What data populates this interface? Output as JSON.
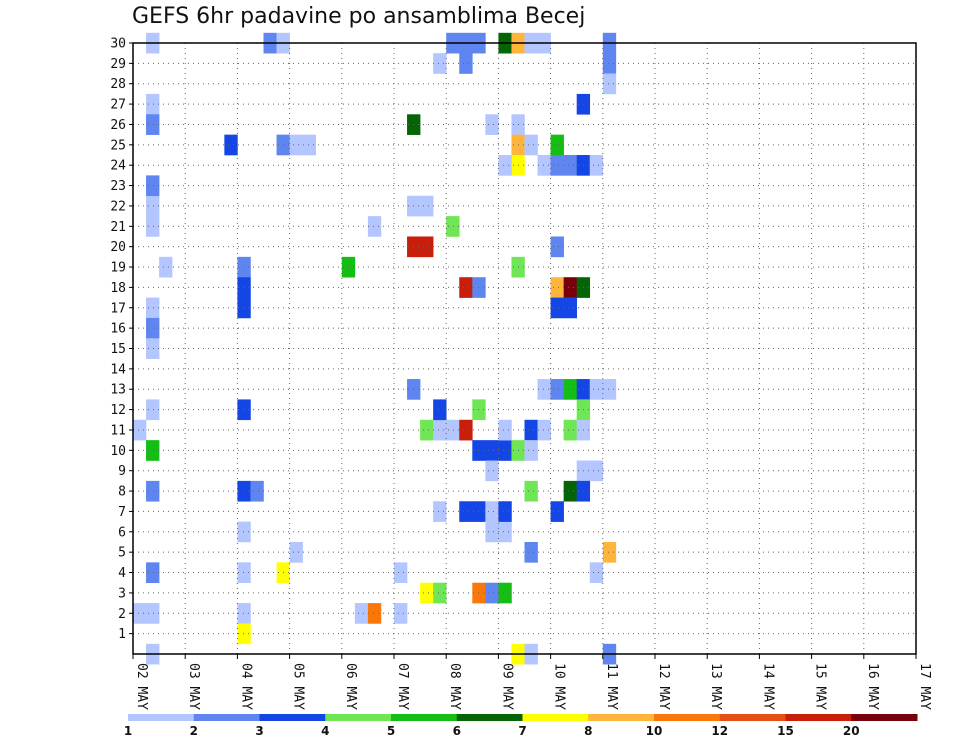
{
  "chart_data": {
    "type": "heatmap",
    "title": "GEFS 6hr padavine po ansamblima Becej",
    "xlabel": "",
    "ylabel": "",
    "x_tick_labels": [
      "02 MAY",
      "03 MAY",
      "04 MAY",
      "05 MAY",
      "06 MAY",
      "07 MAY",
      "08 MAY",
      "09 MAY",
      "10 MAY",
      "11 MAY",
      "12 MAY",
      "13 MAY",
      "14 MAY",
      "15 MAY",
      "16 MAY",
      "17 MAY"
    ],
    "xlim": [
      0,
      60
    ],
    "x_unit": "6-hour steps from 02 MAY 00Z",
    "ylim": [
      0,
      30
    ],
    "y_tick_labels": [
      "1",
      "2",
      "3",
      "4",
      "5",
      "6",
      "7",
      "8",
      "9",
      "10",
      "11",
      "12",
      "13",
      "14",
      "15",
      "16",
      "17",
      "18",
      "19",
      "20",
      "21",
      "22",
      "23",
      "24",
      "25",
      "26",
      "27",
      "28",
      "29",
      "30"
    ],
    "grid": true,
    "colorbar": {
      "labels": [
        "1",
        "2",
        "3",
        "4",
        "5",
        "6",
        "7",
        "8",
        "10",
        "12",
        "15",
        "20"
      ],
      "colors": [
        "#b4c6ff",
        "#5f86f0",
        "#1446e6",
        "#6ee655",
        "#14be14",
        "#056405",
        "#ffff00",
        "#ffb43c",
        "#fa780a",
        "#e65014",
        "#c81e0a",
        "#78000a"
      ]
    },
    "cells": [
      [
        1,
        0,
        1
      ],
      [
        1,
        30,
        1
      ],
      [
        2,
        19,
        1
      ],
      [
        1,
        22,
        1
      ],
      [
        1,
        21,
        1
      ],
      [
        1,
        27,
        1
      ],
      [
        1,
        26,
        2
      ],
      [
        1,
        23,
        2
      ],
      [
        1,
        17,
        1
      ],
      [
        1,
        16,
        2
      ],
      [
        1,
        15,
        1
      ],
      [
        1,
        12,
        1
      ],
      [
        0,
        11,
        1
      ],
      [
        1,
        10,
        5
      ],
      [
        1,
        8,
        2
      ],
      [
        1,
        4,
        2
      ],
      [
        0,
        2,
        1
      ],
      [
        1,
        2,
        1
      ],
      [
        8,
        19,
        2
      ],
      [
        8,
        18,
        3
      ],
      [
        8,
        17,
        3
      ],
      [
        7,
        25,
        3
      ],
      [
        8,
        12,
        3
      ],
      [
        8,
        8,
        3
      ],
      [
        9,
        8,
        2
      ],
      [
        8,
        6,
        1
      ],
      [
        8,
        4,
        1
      ],
      [
        8,
        2,
        1
      ],
      [
        8,
        1,
        7
      ],
      [
        10,
        30,
        2
      ],
      [
        11,
        30,
        1
      ],
      [
        11,
        4,
        7
      ],
      [
        11,
        25,
        2
      ],
      [
        12,
        25,
        1
      ],
      [
        13,
        25,
        1
      ],
      [
        12,
        5,
        1
      ],
      [
        16,
        19,
        5
      ],
      [
        17,
        2,
        1
      ],
      [
        18,
        2,
        9
      ],
      [
        18,
        21,
        1
      ],
      [
        20,
        4,
        1
      ],
      [
        20,
        2,
        1
      ],
      [
        21,
        26,
        6
      ],
      [
        21,
        22,
        1
      ],
      [
        22,
        22,
        1
      ],
      [
        21,
        20,
        11
      ],
      [
        22,
        20,
        11
      ],
      [
        21,
        13,
        2
      ],
      [
        22,
        3,
        7
      ],
      [
        23,
        3,
        4
      ],
      [
        22,
        11,
        4
      ],
      [
        23,
        11,
        1
      ],
      [
        24,
        11,
        1
      ],
      [
        25,
        11,
        11
      ],
      [
        23,
        12,
        3
      ],
      [
        23,
        29,
        1
      ],
      [
        23,
        7,
        1
      ],
      [
        24,
        21,
        4
      ],
      [
        24,
        30,
        2
      ],
      [
        25,
        30,
        2
      ],
      [
        26,
        30,
        2
      ],
      [
        25,
        29,
        2
      ],
      [
        25,
        18,
        11
      ],
      [
        26,
        18,
        2
      ],
      [
        26,
        12,
        4
      ],
      [
        26,
        3,
        9
      ],
      [
        27,
        3,
        2
      ],
      [
        28,
        3,
        5
      ],
      [
        25,
        7,
        3
      ],
      [
        26,
        7,
        3
      ],
      [
        27,
        7,
        1
      ],
      [
        26,
        10,
        3
      ],
      [
        27,
        10,
        3
      ],
      [
        28,
        10,
        3
      ],
      [
        27,
        9,
        1
      ],
      [
        27,
        6,
        1
      ],
      [
        28,
        6,
        1
      ],
      [
        27,
        26,
        1
      ],
      [
        28,
        30,
        6
      ],
      [
        29,
        30,
        8
      ],
      [
        30,
        30,
        1
      ],
      [
        31,
        30,
        1
      ],
      [
        29,
        26,
        1
      ],
      [
        29,
        25,
        8
      ],
      [
        30,
        25,
        1
      ],
      [
        29,
        24,
        7
      ],
      [
        28,
        24,
        1
      ],
      [
        29,
        19,
        4
      ],
      [
        28,
        11,
        1
      ],
      [
        30,
        11,
        3
      ],
      [
        31,
        11,
        1
      ],
      [
        29,
        10,
        4
      ],
      [
        30,
        10,
        1
      ],
      [
        28,
        7,
        3
      ],
      [
        30,
        8,
        4
      ],
      [
        30,
        5,
        2
      ],
      [
        29,
        0,
        7
      ],
      [
        30,
        0,
        1
      ],
      [
        31,
        24,
        1
      ],
      [
        32,
        24,
        2
      ],
      [
        33,
        24,
        2
      ],
      [
        34,
        24,
        3
      ],
      [
        35,
        24,
        1
      ],
      [
        32,
        25,
        5
      ],
      [
        32,
        20,
        2
      ],
      [
        32,
        18,
        8
      ],
      [
        33,
        18,
        12
      ],
      [
        34,
        18,
        6
      ],
      [
        32,
        17,
        3
      ],
      [
        33,
        17,
        3
      ],
      [
        31,
        13,
        1
      ],
      [
        32,
        13,
        2
      ],
      [
        33,
        13,
        5
      ],
      [
        34,
        13,
        3
      ],
      [
        35,
        13,
        1
      ],
      [
        34,
        12,
        4
      ],
      [
        33,
        11,
        4
      ],
      [
        34,
        11,
        1
      ],
      [
        35,
        9,
        1
      ],
      [
        34,
        9,
        1
      ],
      [
        33,
        8,
        6
      ],
      [
        34,
        8,
        3
      ],
      [
        32,
        7,
        3
      ],
      [
        35,
        4,
        1
      ],
      [
        36,
        30,
        2
      ],
      [
        36,
        29,
        2
      ],
      [
        36,
        28,
        1
      ],
      [
        34,
        27,
        3
      ],
      [
        36,
        13,
        1
      ],
      [
        36,
        5,
        8
      ],
      [
        36,
        0,
        2
      ]
    ]
  }
}
